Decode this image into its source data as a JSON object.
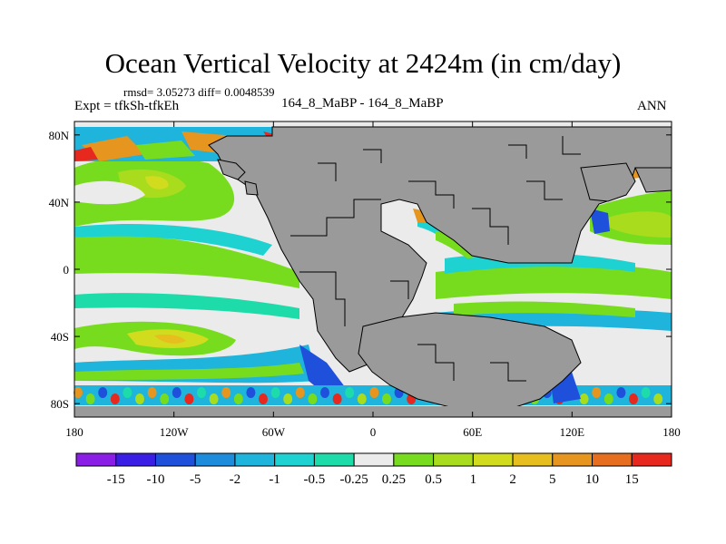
{
  "title": "Ocean Vertical Velocity at 2424m (in cm/day)",
  "stats": "rmsd= 3.05273 diff= 0.0048539",
  "experiment": "Expt = tfkSh-tfkEh",
  "case_label": "164_8_MaBP - 164_8_MaBP",
  "season": "ANN",
  "y_ticks": [
    {
      "label": "80N",
      "lat": 80
    },
    {
      "label": "40N",
      "lat": 40
    },
    {
      "label": "0",
      "lat": 0
    },
    {
      "label": "40S",
      "lat": -40
    },
    {
      "label": "80S",
      "lat": -80
    }
  ],
  "x_ticks": [
    {
      "label": "180",
      "lon": -180
    },
    {
      "label": "120W",
      "lon": -120
    },
    {
      "label": "60W",
      "lon": -60
    },
    {
      "label": "0",
      "lon": 0
    },
    {
      "label": "60E",
      "lon": 60
    },
    {
      "label": "120E",
      "lon": 120
    },
    {
      "label": "180",
      "lon": 180
    }
  ],
  "colorbar": {
    "colors": [
      "#8b1ee6",
      "#3b1ee6",
      "#1e50dc",
      "#1e8cdc",
      "#1eb4dc",
      "#1ed2d2",
      "#1edcaa",
      "#ebebeb",
      "#78dc1e",
      "#aadc1e",
      "#d2dc1e",
      "#e6be1e",
      "#e6961e",
      "#e66e1e",
      "#e6281e"
    ],
    "labels": [
      "-15",
      "-10",
      "-5",
      "-2",
      "-1",
      "-0.5",
      "-0.25",
      "0.25",
      "0.5",
      "1",
      "2",
      "5",
      "10",
      "15"
    ]
  },
  "colors": {
    "land": "#9a9a9a",
    "ocean_neutral": "#ebebeb",
    "coast": "#000000"
  }
}
